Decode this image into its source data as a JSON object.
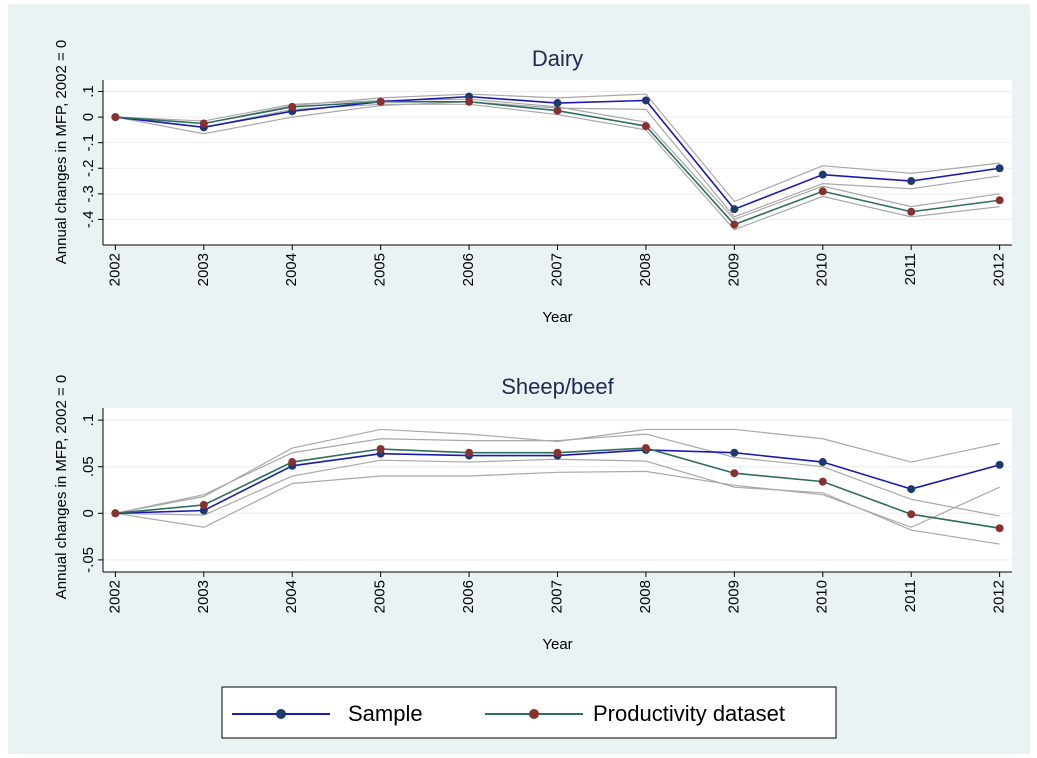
{
  "chart_data": [
    {
      "type": "line",
      "title": "Dairy",
      "x_label": "Year",
      "y_label": "Annual changes in MFP, 2002 = 0",
      "x": [
        2002,
        2003,
        2004,
        2005,
        2006,
        2007,
        2008,
        2009,
        2010,
        2011,
        2012
      ],
      "xlim": [
        2001.86,
        2012.14
      ],
      "xticks": [
        2002,
        2003,
        2004,
        2005,
        2006,
        2007,
        2008,
        2009,
        2010,
        2011,
        2012
      ],
      "ylim": [
        -0.5,
        0.145
      ],
      "yticks": [
        {
          "value": 0.1,
          "label": ".1"
        },
        0,
        {
          "value": -0.1,
          "label": "-.1"
        },
        {
          "value": -0.2,
          "label": "-.2"
        },
        {
          "value": -0.3,
          "label": "-.3"
        },
        {
          "value": -0.4,
          "label": "-.4"
        }
      ],
      "grid": true,
      "series": [
        {
          "color": "#a8a8a8",
          "values": [
            0,
            -0.025,
            0.045,
            0.075,
            0.09,
            0.075,
            0.09,
            -0.33,
            -0.19,
            -0.22,
            -0.18
          ]
        },
        {
          "color": "#a8a8a8",
          "values": [
            0,
            -0.065,
            0.0,
            0.045,
            0.06,
            0.035,
            0.03,
            -0.39,
            -0.26,
            -0.28,
            -0.23
          ]
        },
        {
          "color": "#a8a8a8",
          "values": [
            0,
            -0.015,
            0.05,
            0.065,
            0.07,
            0.04,
            -0.02,
            -0.4,
            -0.27,
            -0.35,
            -0.3
          ]
        },
        {
          "color": "#a8a8a8",
          "values": [
            0,
            -0.04,
            0.03,
            0.05,
            0.05,
            0.01,
            -0.05,
            -0.44,
            -0.31,
            -0.39,
            -0.35
          ]
        },
        {
          "name": "Sample",
          "color": "#1a1ab0",
          "marker_color": "#1c3a6e",
          "values": [
            0,
            -0.04,
            0.023,
            0.06,
            0.08,
            0.055,
            0.065,
            -0.36,
            -0.225,
            -0.25,
            -0.2
          ]
        },
        {
          "name": "Productivity dataset",
          "color": "#2e6e5e",
          "marker_color": "#8b3030",
          "values": [
            0,
            -0.025,
            0.04,
            0.06,
            0.06,
            0.025,
            -0.035,
            -0.42,
            -0.29,
            -0.37,
            -0.325
          ]
        }
      ]
    },
    {
      "type": "line",
      "title": "Sheep/beef",
      "x_label": "Year",
      "y_label": "Annual changes in MFP, 2002 = 0",
      "x": [
        2002,
        2003,
        2004,
        2005,
        2006,
        2007,
        2008,
        2009,
        2010,
        2011,
        2012
      ],
      "xlim": [
        2001.86,
        2012.14
      ],
      "xticks": [
        2002,
        2003,
        2004,
        2005,
        2006,
        2007,
        2008,
        2009,
        2010,
        2011,
        2012
      ],
      "ylim": [
        -0.063,
        0.113
      ],
      "yticks": [
        {
          "value": 0.1,
          "label": ".1"
        },
        {
          "value": 0.05,
          "label": ".05"
        },
        0,
        {
          "value": -0.05,
          "label": "-.05"
        }
      ],
      "grid": true,
      "series": [
        {
          "color": "#a8a8a8",
          "values": [
            0,
            0.018,
            0.07,
            0.09,
            0.085,
            0.077,
            0.09,
            0.09,
            0.08,
            0.055,
            0.075
          ]
        },
        {
          "color": "#a8a8a8",
          "values": [
            0,
            -0.015,
            0.032,
            0.04,
            0.04,
            0.044,
            0.045,
            0.03,
            0.02,
            -0.015,
            0.028
          ]
        },
        {
          "color": "#a8a8a8",
          "values": [
            0,
            0.02,
            0.065,
            0.08,
            0.078,
            0.078,
            0.085,
            0.06,
            0.05,
            0.015,
            -0.003
          ]
        },
        {
          "color": "#a8a8a8",
          "values": [
            0,
            -0.002,
            0.04,
            0.057,
            0.055,
            0.058,
            0.056,
            0.028,
            0.022,
            -0.018,
            -0.033
          ]
        },
        {
          "name": "Sample",
          "color": "#1a1ab0",
          "marker_color": "#1c3a6e",
          "values": [
            0,
            0.003,
            0.051,
            0.064,
            0.062,
            0.062,
            0.068,
            0.065,
            0.055,
            0.026,
            0.052
          ]
        },
        {
          "name": "Productivity dataset",
          "color": "#2e6e5e",
          "marker_color": "#8b3030",
          "values": [
            0,
            0.009,
            0.055,
            0.069,
            0.065,
            0.065,
            0.07,
            0.043,
            0.034,
            -0.001,
            -0.016
          ]
        }
      ]
    }
  ]
}
